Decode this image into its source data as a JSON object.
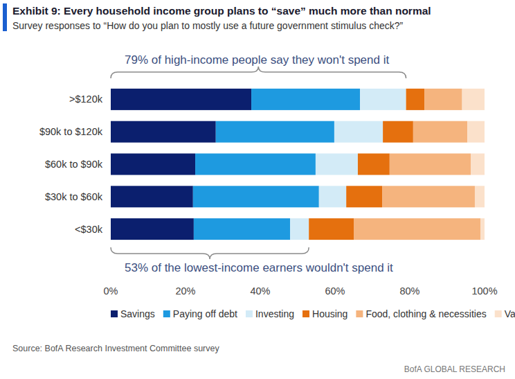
{
  "chart_data": {
    "type": "bar",
    "orientation": "horizontal",
    "stacked": true,
    "grid": false,
    "data_labels": false,
    "legend": "bottom",
    "title": "Exhibit 9: Every household income group plans to “save” much more than normal",
    "subtitle": "Survey responses to “How do you plan to mostly use a future government stimulus check?”",
    "categories": [
      ">$120k",
      "$90k to $120k",
      "$60k to $90k",
      "$30k to $60k",
      "<$30k"
    ],
    "series": [
      {
        "name": "Savings",
        "color": "#0b1f6e",
        "values": [
          37.6,
          28.1,
          22.6,
          22.0,
          22.2
        ]
      },
      {
        "name": "Paying off debt",
        "color": "#1e9ae0",
        "values": [
          29.1,
          31.7,
          32.2,
          33.7,
          25.8
        ]
      },
      {
        "name": "Investing",
        "color": "#d3ebf7",
        "values": [
          12.3,
          13.0,
          11.3,
          7.3,
          5.0
        ]
      },
      {
        "name": "Housing",
        "color": "#e5700e",
        "values": [
          4.9,
          8.1,
          8.5,
          9.6,
          12.0
        ]
      },
      {
        "name": "Food, clothing & necessities",
        "color": "#f5b47e",
        "values": [
          10.1,
          14.5,
          21.7,
          24.8,
          33.9
        ]
      },
      {
        "name": "Vacation/travel",
        "color": "#fbe1cb",
        "values": [
          6.0,
          4.6,
          3.7,
          2.6,
          1.1
        ]
      }
    ],
    "xlim": [
      0,
      100
    ],
    "xticks": [
      {
        "value": 0,
        "label": "0%"
      },
      {
        "value": 20,
        "label": "20%"
      },
      {
        "value": 40,
        "label": "40%"
      },
      {
        "value": 60,
        "label": "60%"
      },
      {
        "value": 80,
        "label": "80%"
      },
      {
        "value": 100,
        "label": "100%"
      }
    ],
    "annotations": [
      {
        "text": "79% of  high-income people say they won't spend it",
        "x": 79
      },
      {
        "text": "53% of the lowest-income earners wouldn't spend it",
        "x": 53
      }
    ],
    "source": "Source: BofA Research Investment Committee survey",
    "brand": "BofA GLOBAL RESEARCH"
  }
}
